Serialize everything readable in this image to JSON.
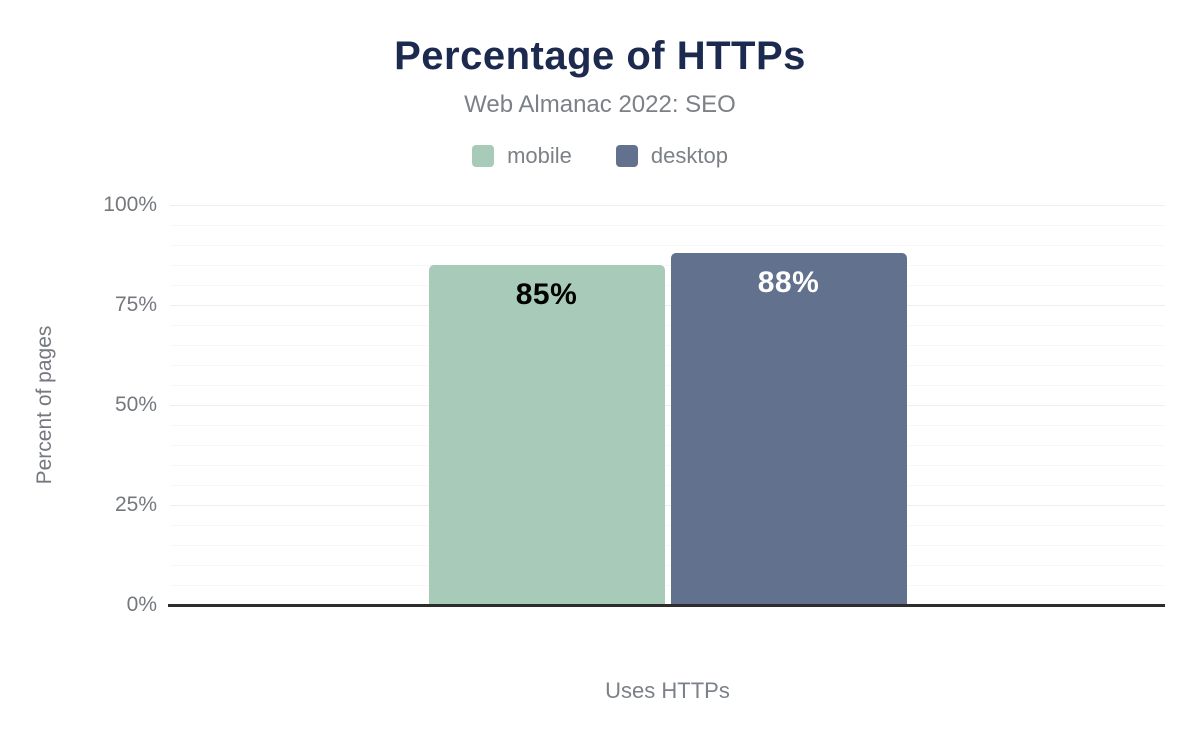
{
  "header": {
    "title": "Percentage of HTTPs",
    "subtitle": "Web Almanac 2022: SEO"
  },
  "chart_data": {
    "type": "bar",
    "title": "Percentage of HTTPs",
    "subtitle": "Web Almanac 2022: SEO",
    "categories": [
      "Uses HTTPs"
    ],
    "series": [
      {
        "name": "mobile",
        "values": [
          85
        ],
        "color": "#a8cbb9",
        "data_label": "85%",
        "data_label_color": "#000000"
      },
      {
        "name": "desktop",
        "values": [
          88
        ],
        "color": "#61718e",
        "data_label": "88%",
        "data_label_color": "#ffffff"
      }
    ],
    "xlabel": "Uses HTTPs",
    "ylabel": "Percent of pages",
    "ylim": [
      0,
      100
    ],
    "yticks": [
      0,
      25,
      50,
      75,
      100
    ],
    "ytick_labels": [
      "0%",
      "25%",
      "50%",
      "75%",
      "100%"
    ],
    "minor_grid_step": 5,
    "grid": true,
    "legend_position": "top"
  },
  "colors": {
    "title_text": "#1b2a4e",
    "subtitle_text": "#7c8187",
    "legend_text": "#7c8187",
    "tick_text": "#75797f",
    "axis_label_text": "#7c8187",
    "axis_line": "#2d2d2d",
    "grid_minor": "#f7f7f7",
    "grid_major": "#eeeeee",
    "background": "#ffffff"
  }
}
